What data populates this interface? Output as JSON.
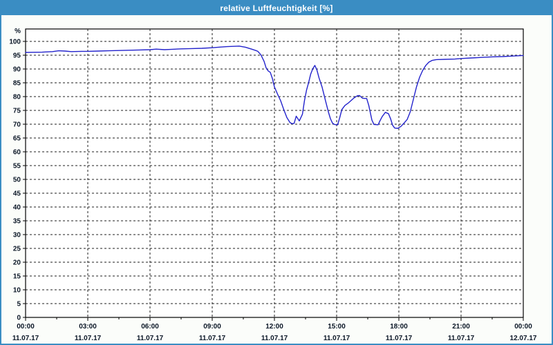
{
  "window": {
    "title": "relative Luftfeuchtigkeit [%]"
  },
  "colors": {
    "accent": "#3a8dc3",
    "titlebar_text": "#ffffff",
    "frame_bg": "#fbfdfa",
    "plot_bg": "#ffffff",
    "axis": "#000000",
    "grid": "#1c1c1c",
    "tick_label": "#0a1626",
    "series": "#2222cc"
  },
  "chart_data": {
    "type": "line",
    "title": "relative Luftfeuchtigkeit [%]",
    "ylabel": "%",
    "xlabel": "",
    "ylim": [
      0,
      104.5
    ],
    "xlim_hours": [
      0,
      24
    ],
    "grid": "dashed",
    "legend_position": "none",
    "yticks": [
      0,
      5,
      10,
      15,
      20,
      25,
      30,
      35,
      40,
      45,
      50,
      55,
      60,
      65,
      70,
      75,
      80,
      85,
      90,
      95,
      100
    ],
    "x_minor_tick_interval_hours": 1.5,
    "xticks": [
      {
        "hour": 0,
        "time": "00:00",
        "date": "11.07.17"
      },
      {
        "hour": 3,
        "time": "03:00",
        "date": "11.07.17"
      },
      {
        "hour": 6,
        "time": "06:00",
        "date": "11.07.17"
      },
      {
        "hour": 9,
        "time": "09:00",
        "date": "11.07.17"
      },
      {
        "hour": 12,
        "time": "12:00",
        "date": "11.07.17"
      },
      {
        "hour": 15,
        "time": "15:00",
        "date": "11.07.17"
      },
      {
        "hour": 18,
        "time": "18:00",
        "date": "11.07.17"
      },
      {
        "hour": 21,
        "time": "21:00",
        "date": "11.07.17"
      },
      {
        "hour": 24,
        "time": "00:00",
        "date": "12.07.17"
      }
    ],
    "series": [
      {
        "name": "relative Luftfeuchtigkeit",
        "unit": "%",
        "color": "#2222cc",
        "points": [
          [
            0.0,
            96.0
          ],
          [
            0.3,
            96.05
          ],
          [
            0.8,
            96.1
          ],
          [
            1.3,
            96.3
          ],
          [
            1.6,
            96.6
          ],
          [
            1.9,
            96.5
          ],
          [
            2.2,
            96.3
          ],
          [
            2.7,
            96.4
          ],
          [
            3.0,
            96.4
          ],
          [
            3.5,
            96.5
          ],
          [
            4.0,
            96.6
          ],
          [
            4.5,
            96.7
          ],
          [
            5.0,
            96.8
          ],
          [
            5.5,
            96.9
          ],
          [
            6.0,
            97.0
          ],
          [
            6.3,
            97.2
          ],
          [
            6.7,
            97.0
          ],
          [
            7.0,
            97.1
          ],
          [
            7.5,
            97.3
          ],
          [
            8.0,
            97.4
          ],
          [
            8.5,
            97.5
          ],
          [
            9.0,
            97.7
          ],
          [
            9.3,
            97.9
          ],
          [
            9.7,
            98.1
          ],
          [
            10.0,
            98.2
          ],
          [
            10.3,
            98.3
          ],
          [
            10.6,
            97.9
          ],
          [
            10.9,
            97.2
          ],
          [
            11.1,
            96.7
          ],
          [
            11.2,
            96.4
          ],
          [
            11.35,
            95.1
          ],
          [
            11.5,
            92.8
          ],
          [
            11.6,
            90.4
          ],
          [
            11.7,
            89.3
          ],
          [
            11.8,
            88.8
          ],
          [
            11.9,
            86.6
          ],
          [
            12.0,
            83.5
          ],
          [
            12.15,
            80.9
          ],
          [
            12.3,
            78.5
          ],
          [
            12.45,
            75.3
          ],
          [
            12.6,
            72.4
          ],
          [
            12.75,
            70.6
          ],
          [
            12.85,
            70.2
          ],
          [
            12.95,
            70.3
          ],
          [
            13.05,
            72.9
          ],
          [
            13.2,
            71.2
          ],
          [
            13.35,
            73.6
          ],
          [
            13.45,
            78.6
          ],
          [
            13.55,
            82.4
          ],
          [
            13.65,
            85.1
          ],
          [
            13.75,
            88.2
          ],
          [
            13.85,
            90.1
          ],
          [
            13.95,
            91.3
          ],
          [
            14.05,
            89.6
          ],
          [
            14.15,
            86.8
          ],
          [
            14.3,
            83.4
          ],
          [
            14.45,
            78.9
          ],
          [
            14.6,
            74.5
          ],
          [
            14.7,
            72.0
          ],
          [
            14.8,
            70.4
          ],
          [
            14.9,
            69.9
          ],
          [
            15.05,
            69.8
          ],
          [
            15.15,
            72.4
          ],
          [
            15.25,
            75.3
          ],
          [
            15.4,
            76.8
          ],
          [
            15.55,
            77.6
          ],
          [
            15.7,
            78.6
          ],
          [
            15.85,
            79.6
          ],
          [
            16.0,
            80.3
          ],
          [
            16.1,
            80.4
          ],
          [
            16.25,
            79.4
          ],
          [
            16.45,
            79.3
          ],
          [
            16.55,
            76.8
          ],
          [
            16.7,
            71.5
          ],
          [
            16.8,
            69.9
          ],
          [
            17.0,
            69.8
          ],
          [
            17.1,
            71.4
          ],
          [
            17.2,
            72.8
          ],
          [
            17.35,
            74.3
          ],
          [
            17.5,
            73.8
          ],
          [
            17.6,
            72.0
          ],
          [
            17.7,
            69.6
          ],
          [
            17.8,
            68.6
          ],
          [
            17.95,
            68.5
          ],
          [
            18.1,
            69.2
          ],
          [
            18.25,
            70.4
          ],
          [
            18.4,
            71.7
          ],
          [
            18.55,
            74.5
          ],
          [
            18.7,
            79.0
          ],
          [
            18.85,
            83.5
          ],
          [
            19.0,
            87.0
          ],
          [
            19.15,
            89.5
          ],
          [
            19.3,
            91.3
          ],
          [
            19.45,
            92.5
          ],
          [
            19.6,
            93.1
          ],
          [
            19.8,
            93.4
          ],
          [
            20.2,
            93.5
          ],
          [
            20.7,
            93.6
          ],
          [
            21.0,
            93.8
          ],
          [
            21.5,
            94.0
          ],
          [
            22.0,
            94.2
          ],
          [
            22.5,
            94.4
          ],
          [
            23.0,
            94.5
          ],
          [
            23.5,
            94.7
          ],
          [
            24.0,
            94.9
          ]
        ]
      }
    ]
  }
}
